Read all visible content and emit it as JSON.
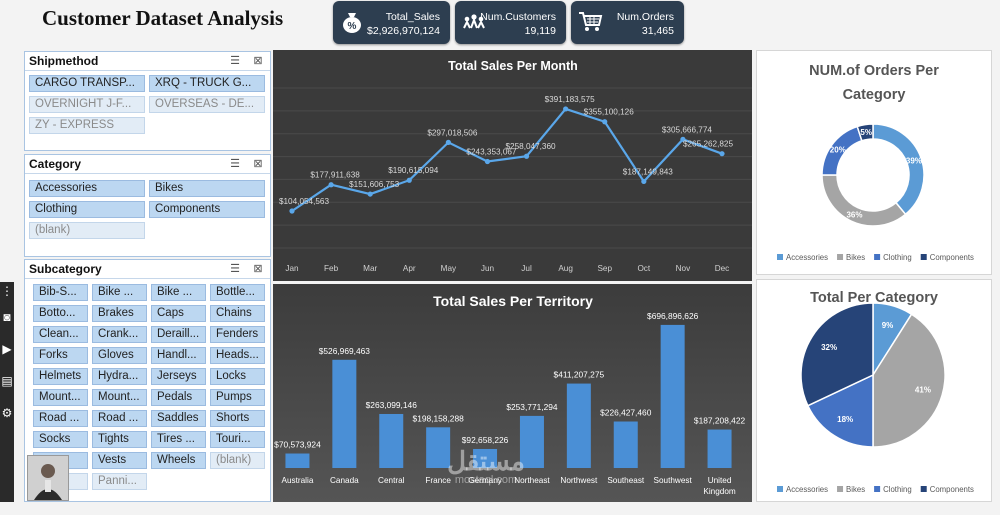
{
  "header": {
    "title": "Customer Dataset Analysis"
  },
  "kpis": [
    {
      "icon": "money-bag-icon",
      "label": "Total_Sales",
      "value": "$2,926,970,124"
    },
    {
      "icon": "customers-icon",
      "label": "Num.Customers",
      "value": "19,119"
    },
    {
      "icon": "shopping-cart-icon",
      "label": "Num.Orders",
      "value": "31,465"
    }
  ],
  "slicers": {
    "shipmethod": {
      "title": "Shipmethod",
      "items": [
        {
          "label": "CARGO TRANSP...",
          "selected": true
        },
        {
          "label": "XRQ - TRUCK G...",
          "selected": true
        },
        {
          "label": "OVERNIGHT J-F...",
          "selected": false
        },
        {
          "label": "OVERSEAS - DE...",
          "selected": false
        },
        {
          "label": "ZY - EXPRESS",
          "selected": false
        }
      ]
    },
    "category": {
      "title": "Category",
      "items": [
        {
          "label": "Accessories",
          "selected": true
        },
        {
          "label": "Bikes",
          "selected": true
        },
        {
          "label": "Clothing",
          "selected": true
        },
        {
          "label": "Components",
          "selected": true
        },
        {
          "label": "(blank)",
          "selected": false
        }
      ]
    },
    "subcategory": {
      "title": "Subcategory",
      "items": [
        {
          "label": "Bib-S...",
          "selected": true
        },
        {
          "label": "Bike ...",
          "selected": true
        },
        {
          "label": "Bike ...",
          "selected": true
        },
        {
          "label": "Bottle...",
          "selected": true
        },
        {
          "label": "Botto...",
          "selected": true
        },
        {
          "label": "Brakes",
          "selected": true
        },
        {
          "label": "Caps",
          "selected": true
        },
        {
          "label": "Chains",
          "selected": true
        },
        {
          "label": "Clean...",
          "selected": true
        },
        {
          "label": "Crank...",
          "selected": true
        },
        {
          "label": "Deraill...",
          "selected": true
        },
        {
          "label": "Fenders",
          "selected": true
        },
        {
          "label": "Forks",
          "selected": true
        },
        {
          "label": "Gloves",
          "selected": true
        },
        {
          "label": "Handl...",
          "selected": true
        },
        {
          "label": "Heads...",
          "selected": true
        },
        {
          "label": "Helmets",
          "selected": true
        },
        {
          "label": "Hydra...",
          "selected": true
        },
        {
          "label": "Jerseys",
          "selected": true
        },
        {
          "label": "Locks",
          "selected": true
        },
        {
          "label": "Mount...",
          "selected": true
        },
        {
          "label": "Mount...",
          "selected": true
        },
        {
          "label": "Pedals",
          "selected": true
        },
        {
          "label": "Pumps",
          "selected": true
        },
        {
          "label": "Road ...",
          "selected": true
        },
        {
          "label": "Road ...",
          "selected": true
        },
        {
          "label": "Saddles",
          "selected": true
        },
        {
          "label": "Shorts",
          "selected": true
        },
        {
          "label": "Socks",
          "selected": true
        },
        {
          "label": "Tights",
          "selected": true
        },
        {
          "label": "Tires ...",
          "selected": true
        },
        {
          "label": "Touri...",
          "selected": true
        },
        {
          "label": "",
          "selected": true
        },
        {
          "label": "Vests",
          "selected": true
        },
        {
          "label": "Wheels",
          "selected": true
        },
        {
          "label": "(blank)",
          "selected": false
        },
        {
          "label": "s",
          "selected": false
        },
        {
          "label": "Panni...",
          "selected": false
        }
      ]
    }
  },
  "watermark": {
    "arabic": "مستقل",
    "latin": "mostaql.com"
  },
  "colors": {
    "accent": "#4a90d9",
    "kpi_bg": "#2d3e50",
    "dark_panel": "#3a3a3a",
    "bar": "#4a90d9",
    "donut": [
      "#5b9bd5",
      "#a5a5a5",
      "#4472c4",
      "#264478"
    ]
  },
  "chart_data": [
    {
      "type": "line",
      "title": "Total  Sales Per Month",
      "x": [
        "Jan",
        "Feb",
        "Mar",
        "Apr",
        "May",
        "Jun",
        "Jul",
        "Aug",
        "Sep",
        "Oct",
        "Nov",
        "Dec"
      ],
      "series": [
        {
          "values": [
            104054563,
            177911638,
            151606753,
            190615094,
            297018506,
            243353067,
            258047360,
            391183575,
            355100126,
            187149843,
            305666774,
            265262825
          ]
        }
      ],
      "labels": [
        "$104,054,563",
        "$177,911,638",
        "$151,606,753",
        "$190,615,094",
        "$297,018,506",
        "$243,353,067",
        "$258,047,360",
        "$391,183,575",
        "$355,100,126",
        "$187,149,843",
        "$305,666,774",
        "$265,262,825"
      ],
      "ylim": [
        0,
        450000000
      ],
      "grid": true
    },
    {
      "type": "bar",
      "title": "Total Sales Per Territory",
      "categories": [
        "Australia",
        "Canada",
        "Central",
        "France",
        "Germany",
        "Northeast",
        "Northwest",
        "Southeast",
        "Southwest",
        "United Kingdom"
      ],
      "values": [
        70573924,
        526969463,
        263099146,
        198158288,
        92658226,
        253771294,
        411207275,
        226427460,
        696896626,
        187208422
      ],
      "labels": [
        "$70,573,924",
        "$526,969,463",
        "$263,099,146",
        "$198,158,288",
        "$92,658,226",
        "$253,771,294",
        "$411,207,275",
        "$226,427,460",
        "$696,896,626",
        "$187,208,422"
      ],
      "ylim": [
        0,
        750000000
      ]
    },
    {
      "type": "pie",
      "subtype": "donut",
      "title": "NUM.of Orders Per Category",
      "categories": [
        "Accessories",
        "Bikes",
        "Clothing",
        "Components"
      ],
      "values": [
        39,
        36,
        20,
        5
      ],
      "labels": [
        "39%",
        "36%",
        "20%",
        "5%"
      ],
      "legend": "bottom"
    },
    {
      "type": "pie",
      "title": "Total Per Category",
      "categories": [
        "Accessories",
        "Bikes",
        "Clothing",
        "Components"
      ],
      "values": [
        9,
        41,
        18,
        32
      ],
      "labels": [
        "9%",
        "41%",
        "18%",
        "32%"
      ],
      "legend": "bottom"
    }
  ]
}
